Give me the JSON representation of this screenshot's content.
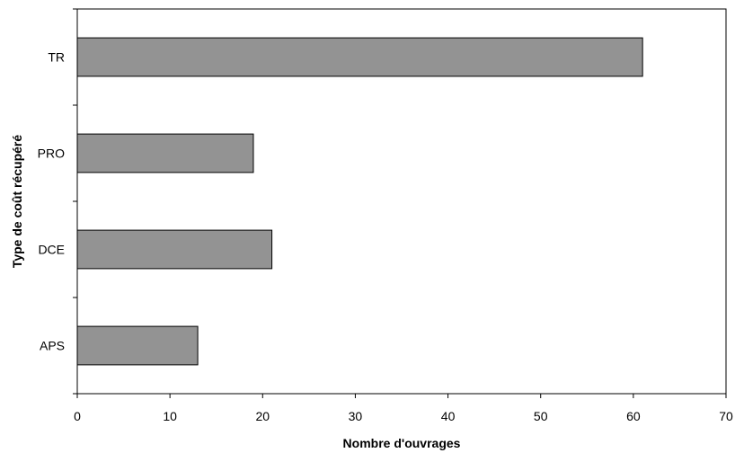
{
  "chart_data": {
    "type": "bar",
    "orientation": "horizontal",
    "categories": [
      "APS",
      "DCE",
      "PRO",
      "TR"
    ],
    "values": [
      13,
      21,
      19,
      61
    ],
    "title": "",
    "xlabel": "Nombre d'ouvrages",
    "ylabel": "Type de coût récupéré",
    "xlim": [
      0,
      70
    ],
    "xticks": [
      0,
      10,
      20,
      30,
      40,
      50,
      60,
      70
    ],
    "grid": false,
    "legend": "none",
    "bar_color": "#939393",
    "bar_edge_color": "#000000"
  }
}
